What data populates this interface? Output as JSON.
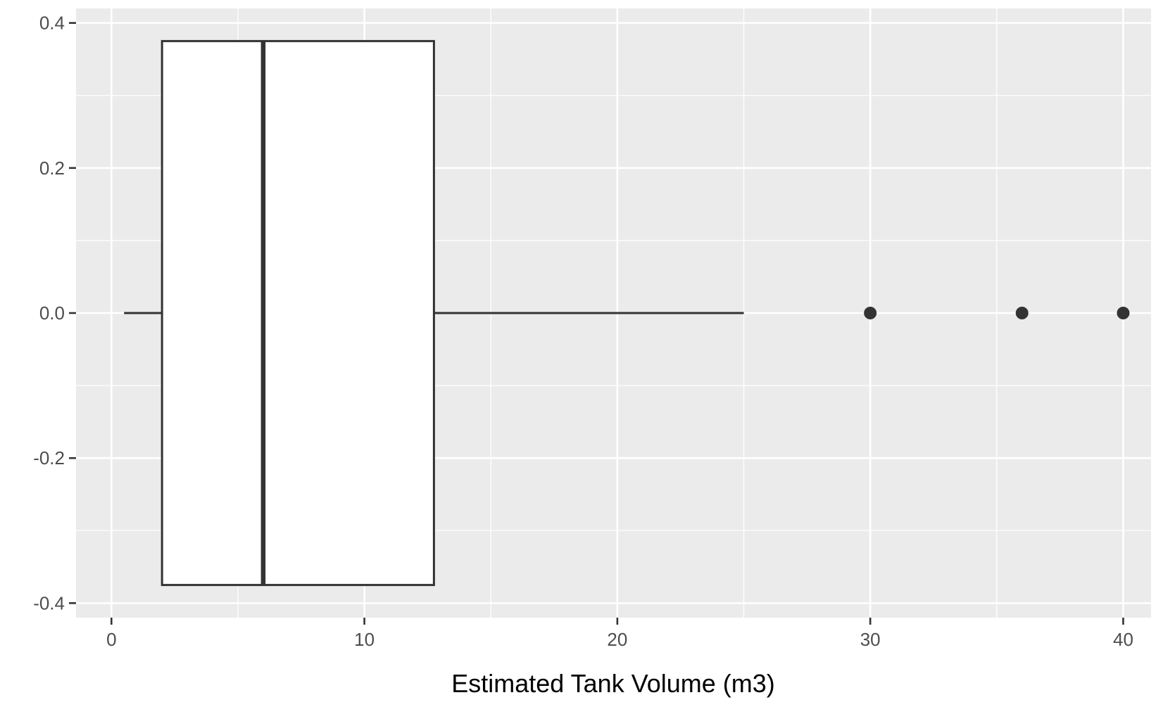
{
  "chart_data": {
    "type": "boxplot",
    "title": "",
    "xlabel": "Estimated Tank Volume (m3)",
    "ylabel": "",
    "xlim": [
      -1.4,
      41.1
    ],
    "ylim": [
      -0.42,
      0.42
    ],
    "x_ticks": [
      0,
      10,
      20,
      30,
      40
    ],
    "x_tick_labels": [
      "0",
      "10",
      "20",
      "30",
      "40"
    ],
    "y_ticks": [
      0.4,
      0.2,
      0.0,
      -0.2,
      -0.4
    ],
    "y_tick_labels": [
      "0.4",
      "0.2",
      "0.0",
      "-0.2",
      "-0.4"
    ],
    "x_minor_gridlines": [
      5,
      15,
      25,
      35
    ],
    "y_minor_gridlines": [
      0.3,
      0.1,
      -0.1,
      -0.3
    ],
    "grid": true,
    "orientation": "horizontal",
    "box": {
      "y_center": 0.0,
      "y_half_width": 0.375,
      "whisker_low": 0.5,
      "q1": 2.0,
      "median": 6.0,
      "q3": 12.75,
      "whisker_high": 25.0
    },
    "outliers": [
      30,
      36,
      40
    ],
    "colors": {
      "panel_background": "#ebebeb",
      "grid": "#ffffff",
      "box_fill": "#ffffff",
      "box_stroke": "#333333",
      "outlier": "#333333"
    }
  }
}
